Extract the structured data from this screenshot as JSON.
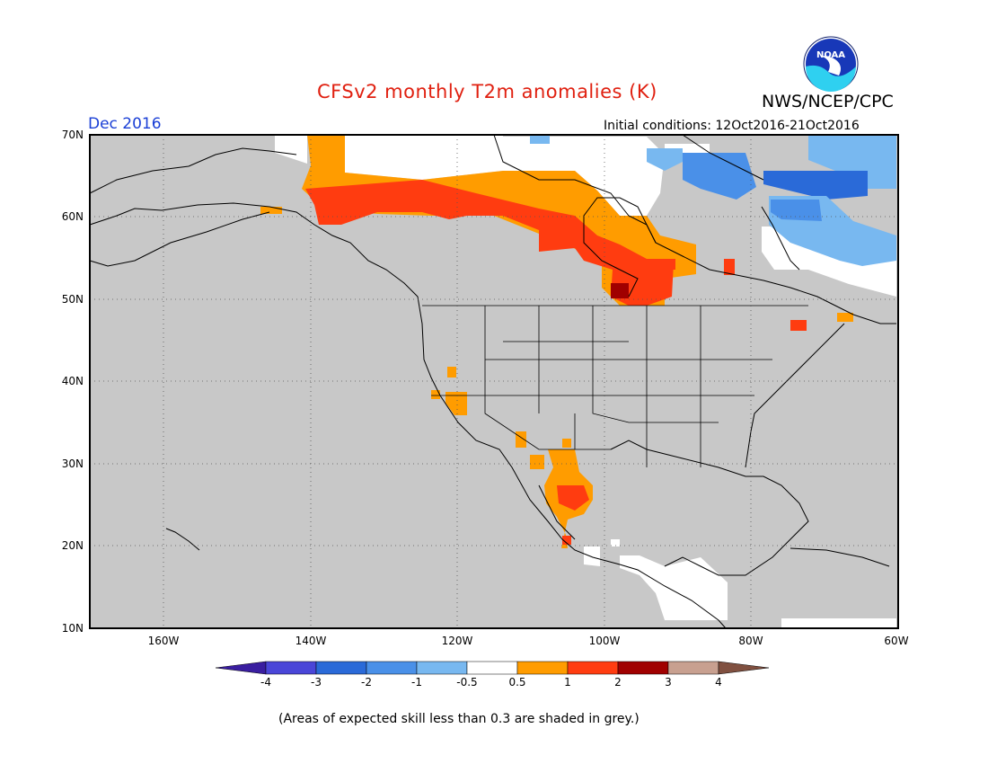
{
  "header": {
    "title": "CFSv2 monthly T2m anomalies (K)",
    "agency": "NWS/NCEP/CPC",
    "month": "Dec 2016",
    "initial_conditions": "Initial conditions: 12Oct2016-21Oct2016",
    "logo_text": "NOAA"
  },
  "axes": {
    "lat_labels": [
      "70N",
      "60N",
      "50N",
      "40N",
      "30N",
      "20N",
      "10N"
    ],
    "lon_labels": [
      "160W",
      "140W",
      "120W",
      "100W",
      "80W",
      "60W"
    ],
    "lat_range": [
      10,
      70
    ],
    "lon_range": [
      -170,
      -60
    ],
    "grid": "dotted"
  },
  "colorbar": {
    "labels": [
      "-4",
      "-3",
      "-2",
      "-1",
      "-0.5",
      "0.5",
      "1",
      "2",
      "3",
      "4"
    ],
    "colors": [
      "#3a1ea0",
      "#4a46d8",
      "#2a6ad8",
      "#4a90e8",
      "#78b8f0",
      "#ffffff",
      "#ff9c00",
      "#ff3c10",
      "#a00000",
      "#c8a090",
      "#805040"
    ]
  },
  "footer": {
    "note": "(Areas of expected skill less than 0.3 are shaded in grey.)"
  },
  "colors": {
    "grey_low_skill": "#c8c8c8",
    "warm_05_1": "#ff9c00",
    "warm_1_2": "#ff3c10",
    "warm_2_3": "#a00000",
    "cool_05_1": "#78b8f0",
    "cool_1_2": "#4a90e8",
    "cool_2_3": "#2a6ad8"
  }
}
